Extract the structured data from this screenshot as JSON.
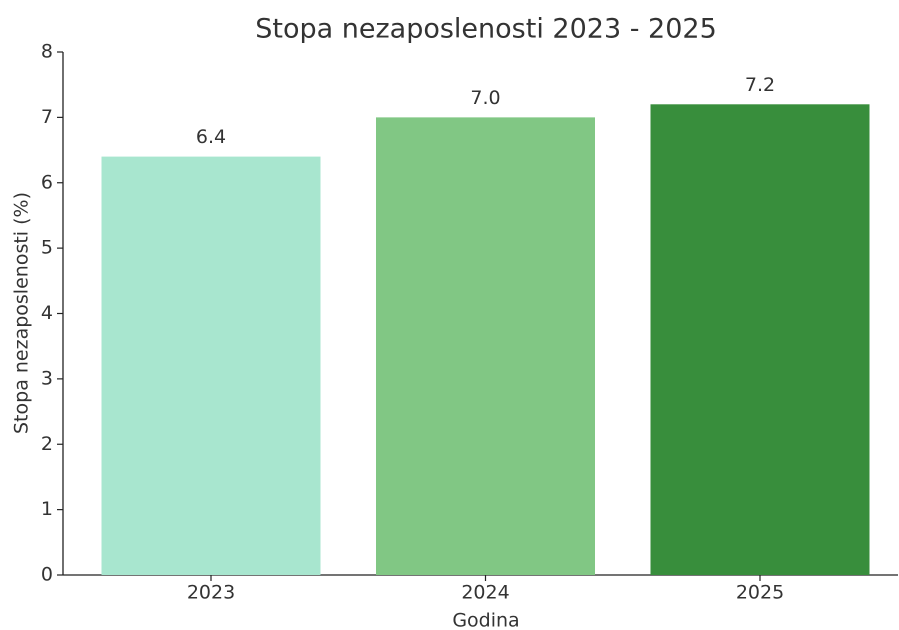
{
  "chart_data": {
    "type": "bar",
    "title": "Stopa nezaposlenosti 2023 - 2025",
    "xlabel": "Godina",
    "ylabel": "Stopa nezaposlenosti (%)",
    "categories": [
      "2023",
      "2024",
      "2025"
    ],
    "values": [
      6.4,
      7.0,
      7.2
    ],
    "value_labels": [
      "6.4",
      "7.0",
      "7.2"
    ],
    "colors": [
      "#a8e6cf",
      "#81c784",
      "#388e3c"
    ],
    "ylim": [
      0,
      8
    ],
    "yticks": [
      0,
      1,
      2,
      3,
      4,
      5,
      6,
      7,
      8
    ],
    "grid": false
  }
}
